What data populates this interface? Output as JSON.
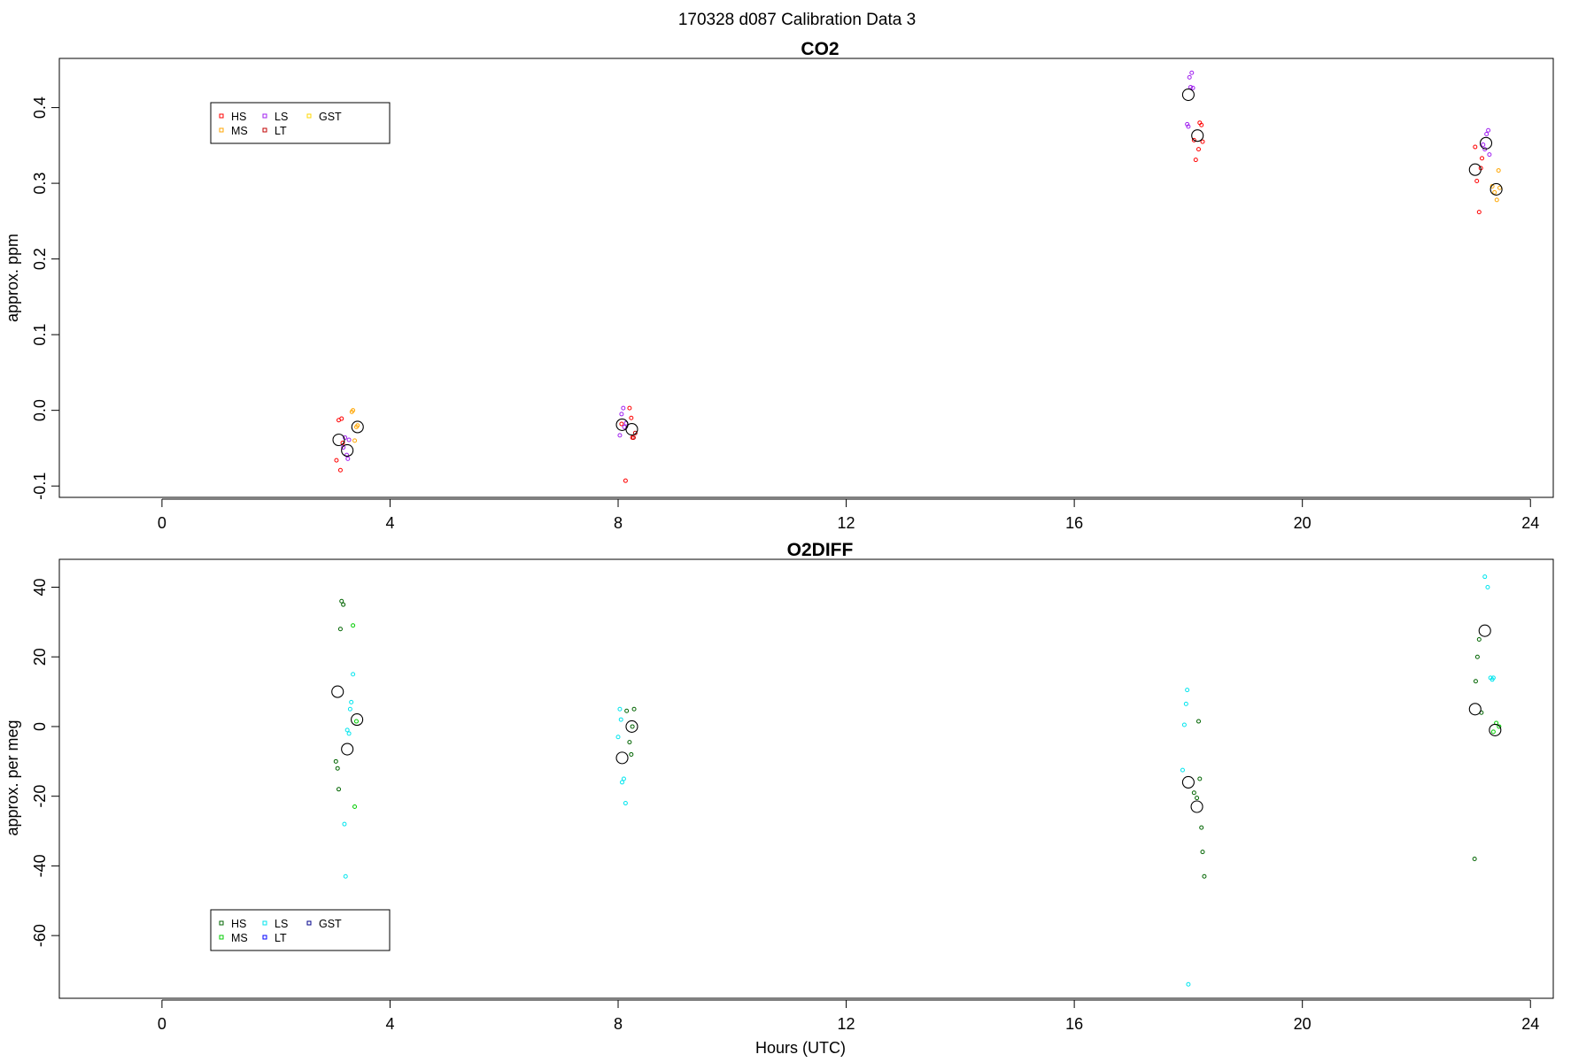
{
  "figure_title": "170328   d087   Calibration Data 3",
  "colors": {
    "HS_co2": "#ff0000",
    "MS_co2": "#ffa500",
    "LS_co2": "#a020f0",
    "LT_co2": "#c00000",
    "GST_co2": "#ffd700",
    "HS_o2": "#006400",
    "MS_o2": "#00cc00",
    "LS_o2": "#00e5ee",
    "LT_o2": "#0000ff",
    "GST_o2": "#00008b",
    "mean_marker": "#000000"
  },
  "chart_data": [
    {
      "type": "scatter",
      "title": "CO2",
      "xlabel": "",
      "ylabel": "approx. ppm",
      "xlim": [
        -1.8,
        24.4
      ],
      "ylim": [
        -0.115,
        0.465
      ],
      "xticks": [
        "0",
        "4",
        "8",
        "12",
        "16",
        "20",
        "24"
      ],
      "yticks": [
        "-0.1",
        "0.0",
        "0.1",
        "0.2",
        "0.3",
        "0.4"
      ],
      "legend": {
        "position": "top-left",
        "entries": [
          {
            "label": "HS",
            "color": "#ff0000"
          },
          {
            "label": "MS",
            "color": "#ffa500"
          },
          {
            "label": "LS",
            "color": "#a020f0"
          },
          {
            "label": "LT",
            "color": "#c00000"
          },
          {
            "label": "GST",
            "color": "#ffd700"
          }
        ]
      },
      "series": [
        {
          "name": "HS",
          "color": "#ff0000",
          "points": [
            [
              3.06,
              -0.066
            ],
            [
              3.1,
              -0.013
            ],
            [
              3.13,
              -0.079
            ],
            [
              3.15,
              -0.011
            ],
            [
              3.17,
              -0.043
            ],
            [
              8.06,
              -0.018
            ],
            [
              8.13,
              -0.093
            ],
            [
              8.2,
              0.003
            ],
            [
              8.23,
              -0.01
            ],
            [
              8.25,
              -0.036
            ],
            [
              18.1,
              0.357
            ],
            [
              18.13,
              0.331
            ],
            [
              18.18,
              0.345
            ],
            [
              18.2,
              0.38
            ],
            [
              18.23,
              0.377
            ],
            [
              18.25,
              0.355
            ],
            [
              23.03,
              0.348
            ],
            [
              23.06,
              0.303
            ],
            [
              23.1,
              0.262
            ],
            [
              23.13,
              0.32
            ],
            [
              23.15,
              0.333
            ]
          ]
        },
        {
          "name": "MS",
          "color": "#ffa500",
          "points": [
            [
              3.33,
              -0.002
            ],
            [
              3.35,
              0.0
            ],
            [
              3.38,
              -0.04
            ],
            [
              3.41,
              -0.022
            ],
            [
              3.43,
              -0.02
            ],
            [
              23.33,
              0.296
            ],
            [
              23.37,
              0.288
            ],
            [
              23.41,
              0.278
            ],
            [
              23.44,
              0.317
            ],
            [
              23.46,
              0.294
            ]
          ]
        },
        {
          "name": "LS",
          "color": "#a020f0",
          "points": [
            [
              3.18,
              -0.049
            ],
            [
              3.21,
              -0.036
            ],
            [
              3.24,
              -0.059
            ],
            [
              3.26,
              -0.064
            ],
            [
              3.28,
              -0.039
            ],
            [
              8.03,
              -0.033
            ],
            [
              8.06,
              -0.005
            ],
            [
              8.09,
              0.003
            ],
            [
              8.11,
              -0.022
            ],
            [
              8.14,
              -0.017
            ],
            [
              17.98,
              0.378
            ],
            [
              18.0,
              0.375
            ],
            [
              18.02,
              0.44
            ],
            [
              18.04,
              0.427
            ],
            [
              18.06,
              0.446
            ],
            [
              18.08,
              0.426
            ],
            [
              23.17,
              0.351
            ],
            [
              23.2,
              0.345
            ],
            [
              23.23,
              0.365
            ],
            [
              23.26,
              0.37
            ],
            [
              23.28,
              0.338
            ]
          ]
        },
        {
          "name": "LT",
          "color": "#c00000",
          "points": [
            [
              8.27,
              -0.036
            ],
            [
              8.3,
              -0.03
            ]
          ]
        },
        {
          "name": "GST",
          "color": "#ffd700",
          "points": []
        },
        {
          "name": "",
          "color": "#000000",
          "marker": "large-circle",
          "points": [
            [
              3.1,
              -0.039
            ],
            [
              3.25,
              -0.053
            ],
            [
              3.43,
              -0.022
            ],
            [
              8.07,
              -0.019
            ],
            [
              8.24,
              -0.025
            ],
            [
              18.0,
              0.417
            ],
            [
              18.16,
              0.363
            ],
            [
              23.03,
              0.318
            ],
            [
              23.22,
              0.353
            ],
            [
              23.4,
              0.292
            ]
          ]
        }
      ]
    },
    {
      "type": "scatter",
      "title": "O2DIFF",
      "xlabel": "Hours (UTC)",
      "ylabel": "approx. per meg",
      "xlim": [
        -1.8,
        24.4
      ],
      "ylim": [
        -78,
        48
      ],
      "xticks": [
        "0",
        "4",
        "8",
        "12",
        "16",
        "20",
        "24"
      ],
      "yticks": [
        "-60",
        "-40",
        "-20",
        "0",
        "20",
        "40"
      ],
      "legend": {
        "position": "bottom-left",
        "entries": [
          {
            "label": "HS",
            "color": "#006400"
          },
          {
            "label": "MS",
            "color": "#00cc00"
          },
          {
            "label": "LS",
            "color": "#00e5ee"
          },
          {
            "label": "LT",
            "color": "#0000ff"
          },
          {
            "label": "GST",
            "color": "#00008b"
          }
        ]
      },
      "series": [
        {
          "name": "HS",
          "color": "#006400",
          "points": [
            [
              3.05,
              -10
            ],
            [
              3.08,
              -12
            ],
            [
              3.1,
              -18
            ],
            [
              3.13,
              28
            ],
            [
              3.15,
              36
            ],
            [
              3.18,
              35
            ],
            [
              8.15,
              4.5
            ],
            [
              8.2,
              -4.5
            ],
            [
              8.23,
              -8
            ],
            [
              8.25,
              0
            ],
            [
              8.28,
              5
            ],
            [
              18.1,
              -19
            ],
            [
              18.15,
              -20.5
            ],
            [
              18.18,
              1.5
            ],
            [
              18.2,
              -15
            ],
            [
              18.23,
              -29
            ],
            [
              18.25,
              -36
            ],
            [
              18.28,
              -43
            ],
            [
              23.02,
              -38
            ],
            [
              23.04,
              13
            ],
            [
              23.07,
              20
            ],
            [
              23.1,
              25
            ],
            [
              23.14,
              4
            ]
          ]
        },
        {
          "name": "MS",
          "color": "#00cc00",
          "points": [
            [
              3.35,
              29
            ],
            [
              3.38,
              -23
            ],
            [
              3.41,
              1.5
            ],
            [
              23.35,
              -1.5
            ],
            [
              23.4,
              1
            ],
            [
              23.45,
              0
            ]
          ]
        },
        {
          "name": "LS",
          "color": "#00e5ee",
          "points": [
            [
              3.2,
              -28
            ],
            [
              3.22,
              -43
            ],
            [
              3.25,
              -1
            ],
            [
              3.28,
              -2
            ],
            [
              3.3,
              5
            ],
            [
              3.32,
              7
            ],
            [
              3.35,
              15
            ],
            [
              8.0,
              -3
            ],
            [
              8.03,
              5
            ],
            [
              8.05,
              2
            ],
            [
              8.07,
              -16
            ],
            [
              8.1,
              -15
            ],
            [
              8.13,
              -22
            ],
            [
              17.9,
              -12.5
            ],
            [
              17.93,
              0.5
            ],
            [
              17.96,
              6.5
            ],
            [
              17.98,
              10.5
            ],
            [
              18.0,
              -74
            ],
            [
              23.2,
              43
            ],
            [
              23.25,
              40
            ],
            [
              23.3,
              14
            ],
            [
              23.33,
              13.5
            ],
            [
              23.35,
              14
            ]
          ]
        },
        {
          "name": "LT",
          "color": "#0000ff",
          "points": []
        },
        {
          "name": "GST",
          "color": "#00008b",
          "points": []
        },
        {
          "name": "",
          "color": "#000000",
          "marker": "large-circle",
          "points": [
            [
              3.08,
              10
            ],
            [
              3.25,
              -6.5
            ],
            [
              3.42,
              2
            ],
            [
              8.07,
              -9
            ],
            [
              8.24,
              0
            ],
            [
              18.0,
              -16
            ],
            [
              18.15,
              -23
            ],
            [
              23.03,
              5
            ],
            [
              23.2,
              27.5
            ],
            [
              23.38,
              -1
            ]
          ]
        }
      ]
    }
  ]
}
